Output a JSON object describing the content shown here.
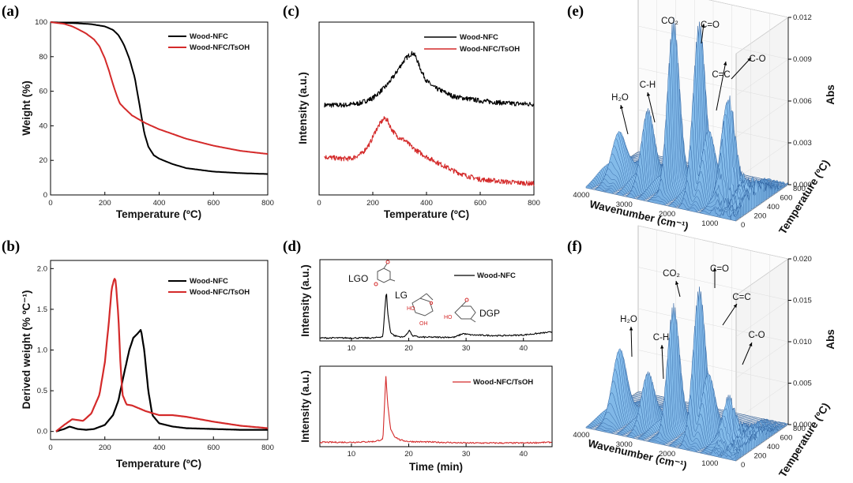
{
  "colors": {
    "black": "#000000",
    "red": "#d42a2a",
    "surface": "#3a6fb3",
    "surface_light": "#8fc1ee"
  },
  "panels": {
    "a": {
      "label": "(a)",
      "xlabel": "Temperature (ºC)",
      "ylabel": "Weight (%)"
    },
    "b": {
      "label": "(b)",
      "xlabel": "Temperature (ºC)",
      "ylabel": "Derived weight (% ºC⁻¹)"
    },
    "c": {
      "label": "(c)",
      "xlabel": "Temperature (ºC)",
      "ylabel": "Intensity (a.u.)"
    },
    "d": {
      "label": "(d)",
      "xlabel": "Time (min)",
      "ylabel_top": "Intensity (a.u.)",
      "ylabel_bottom": "Intensity (a.u.)"
    },
    "e": {
      "label": "(e)",
      "xlabel": "Wavenumber (cm⁻¹)",
      "ylabel": "Temperature (ºC)",
      "zlabel": "Abs"
    },
    "f": {
      "label": "(f)",
      "xlabel": "Wavenumber (cm⁻¹)",
      "ylabel": "Temperature (ºC)",
      "zlabel": "Abs"
    }
  },
  "chart_data": [
    {
      "id": "a",
      "type": "line",
      "xlabel": "Temperature (ºC)",
      "ylabel": "Weight (%)",
      "xlim": [
        0,
        800
      ],
      "ylim": [
        0,
        100
      ],
      "xticks": [
        0,
        200,
        400,
        600,
        800
      ],
      "yticks": [
        0,
        20,
        40,
        60,
        80,
        100
      ],
      "legend": [
        "Wood-NFC",
        "Wood-NFC/TsOH"
      ],
      "series": [
        {
          "name": "Wood-NFC",
          "color": "#000000",
          "x": [
            0,
            50,
            100,
            150,
            200,
            230,
            250,
            270,
            290,
            310,
            330,
            345,
            360,
            380,
            400,
            450,
            500,
            600,
            700,
            800
          ],
          "y": [
            100,
            99.6,
            99.3,
            98.8,
            97.5,
            95.5,
            92.5,
            87,
            79,
            68,
            50,
            36,
            28,
            23,
            21,
            17.8,
            15.5,
            13.5,
            12.6,
            12.1
          ]
        },
        {
          "name": "Wood-NFC/TsOH",
          "color": "#d42a2a",
          "x": [
            0,
            50,
            80,
            100,
            130,
            160,
            180,
            200,
            215,
            230,
            245,
            255,
            270,
            300,
            350,
            400,
            500,
            600,
            700,
            800
          ],
          "y": [
            100,
            99,
            97.5,
            96,
            93.5,
            90,
            86,
            79,
            72,
            64,
            57,
            53,
            50.5,
            46,
            41.5,
            38,
            32.5,
            28.5,
            25.5,
            23.7
          ]
        }
      ]
    },
    {
      "id": "b",
      "type": "line",
      "xlabel": "Temperature (ºC)",
      "ylabel": "Derived weight (% ºC⁻¹)",
      "xlim": [
        0,
        800
      ],
      "ylim": [
        -0.1,
        2.1
      ],
      "xticks": [
        0,
        200,
        400,
        600,
        800
      ],
      "yticks": [
        0.0,
        0.5,
        1.0,
        1.5,
        2.0
      ],
      "legend": [
        "Wood-NFC",
        "Wood-NFC/TsOH"
      ],
      "series": [
        {
          "name": "Wood-NFC",
          "color": "#000000",
          "x": [
            20,
            50,
            70,
            100,
            130,
            160,
            200,
            230,
            250,
            270,
            290,
            305,
            320,
            333,
            345,
            360,
            375,
            400,
            450,
            500,
            600,
            700,
            800
          ],
          "y": [
            0.0,
            0.03,
            0.06,
            0.03,
            0.02,
            0.03,
            0.08,
            0.2,
            0.38,
            0.7,
            1.0,
            1.15,
            1.2,
            1.25,
            1.0,
            0.5,
            0.2,
            0.1,
            0.06,
            0.04,
            0.03,
            0.02,
            0.02
          ]
        },
        {
          "name": "Wood-NFC/TsOH",
          "color": "#d42a2a",
          "x": [
            20,
            50,
            80,
            100,
            120,
            150,
            180,
            200,
            215,
            225,
            235,
            240,
            250,
            258,
            265,
            280,
            300,
            350,
            400,
            450,
            500,
            600,
            700,
            800
          ],
          "y": [
            0.0,
            0.08,
            0.15,
            0.14,
            0.13,
            0.22,
            0.45,
            0.85,
            1.35,
            1.75,
            1.88,
            1.85,
            1.4,
            0.8,
            0.45,
            0.33,
            0.32,
            0.25,
            0.2,
            0.2,
            0.18,
            0.12,
            0.07,
            0.04
          ]
        }
      ]
    },
    {
      "id": "c",
      "type": "line",
      "xlabel": "Temperature (ºC)",
      "ylabel": "Intensity (a.u.)",
      "xlim": [
        0,
        800
      ],
      "ylim": [
        0,
        10
      ],
      "xticks": [
        0,
        200,
        400,
        600,
        800
      ],
      "legend": [
        "Wood-NFC",
        "Wood-NFC/TsOH"
      ],
      "series": [
        {
          "name": "Wood-NFC",
          "color": "#000000",
          "x": [
            20,
            100,
            150,
            200,
            250,
            280,
            300,
            320,
            340,
            350,
            360,
            380,
            400,
            430,
            460,
            500,
            600,
            700,
            800
          ],
          "y": [
            5.2,
            5.2,
            5.3,
            5.6,
            6.3,
            6.9,
            7.4,
            7.85,
            8.15,
            8.2,
            8.0,
            7.2,
            6.6,
            6.2,
            6.0,
            5.7,
            5.45,
            5.3,
            5.25
          ]
        },
        {
          "name": "Wood-NFC/TsOH",
          "color": "#d42a2a",
          "x": [
            20,
            80,
            120,
            160,
            190,
            210,
            230,
            245,
            255,
            270,
            290,
            320,
            350,
            400,
            450,
            500,
            550,
            600,
            700,
            800
          ],
          "y": [
            2.2,
            2.1,
            2.1,
            2.4,
            3.0,
            3.7,
            4.2,
            4.45,
            4.3,
            3.8,
            3.4,
            3.15,
            2.7,
            2.2,
            1.8,
            1.4,
            1.1,
            0.9,
            0.75,
            0.65
          ]
        }
      ]
    },
    {
      "id": "d",
      "type": "line",
      "xlabel": "Time (min)",
      "xlim": [
        4.5,
        45
      ],
      "xticks": [
        10,
        20,
        30,
        40
      ],
      "subplots": [
        {
          "name": "Wood-NFC",
          "color": "#000000",
          "ylabel": "Intensity (a.u.)",
          "annotations": [
            "LGO",
            "LG",
            "DGP"
          ],
          "x": [
            4.5,
            10,
            14,
            15.5,
            15.9,
            16.1,
            16.3,
            16.8,
            17.5,
            19,
            19.7,
            20.1,
            20.6,
            22,
            28,
            29.5,
            30,
            31,
            36,
            40,
            45
          ],
          "y": [
            0.04,
            0.04,
            0.04,
            0.06,
            0.5,
            0.68,
            0.4,
            0.12,
            0.07,
            0.05,
            0.09,
            0.15,
            0.07,
            0.05,
            0.05,
            0.1,
            0.09,
            0.08,
            0.07,
            0.08,
            0.12
          ]
        },
        {
          "name": "Wood-NFC/TsOH",
          "color": "#d42a2a",
          "ylabel": "Intensity (a.u.)",
          "x": [
            4.5,
            10,
            14,
            15.5,
            15.8,
            16.0,
            16.3,
            16.8,
            17.5,
            18.5,
            20,
            25,
            30,
            35,
            40,
            45
          ],
          "y": [
            0.06,
            0.06,
            0.07,
            0.1,
            0.6,
            0.97,
            0.6,
            0.25,
            0.14,
            0.09,
            0.07,
            0.06,
            0.05,
            0.05,
            0.05,
            0.06
          ]
        }
      ]
    },
    {
      "id": "e",
      "type": "surface3d",
      "xlabel": "Wavenumber (cm⁻¹)",
      "ylabel": "Temperature (ºC)",
      "zlabel": "Abs",
      "xlim": [
        4000,
        500
      ],
      "ylim": [
        0,
        800
      ],
      "zlim": [
        0,
        0.012
      ],
      "xticks": [
        4000,
        3000,
        2000,
        1000
      ],
      "yticks": [
        0,
        200,
        400,
        600,
        800
      ],
      "zticks": [
        "0.000",
        "0.003",
        "0.006",
        "0.009",
        "0.012"
      ],
      "annotations": [
        "H₂O",
        "C-H",
        "CO₂",
        "C=O",
        "C=C",
        "C-O"
      ],
      "peaks": [
        {
          "label": "H₂O",
          "wavenumber": 3600,
          "abs": 0.0033
        },
        {
          "label": "C-H",
          "wavenumber": 2950,
          "abs": 0.0048
        },
        {
          "label": "CO₂",
          "wavenumber": 2350,
          "abs": 0.0125
        },
        {
          "label": "C=O",
          "wavenumber": 1750,
          "abs": 0.0118
        },
        {
          "label": "C=C",
          "wavenumber": 1550,
          "abs": 0.0045
        },
        {
          "label": "C-O",
          "wavenumber": 1100,
          "abs": 0.0072
        }
      ]
    },
    {
      "id": "f",
      "type": "surface3d",
      "xlabel": "Wavenumber (cm⁻¹)",
      "ylabel": "Temperature (ºC)",
      "zlabel": "Abs",
      "xlim": [
        4000,
        500
      ],
      "ylim": [
        0,
        800
      ],
      "zlim": [
        0,
        0.02
      ],
      "xticks": [
        4000,
        3000,
        2000,
        1000
      ],
      "yticks": [
        0,
        200,
        400,
        600,
        800
      ],
      "zticks": [
        "0.000",
        "0.005",
        "0.010",
        "0.015",
        "0.020"
      ],
      "annotations": [
        "H₂O",
        "C-H",
        "CO₂",
        "C=O",
        "C=C",
        "C-O"
      ],
      "peaks": [
        {
          "label": "H₂O",
          "wavenumber": 3600,
          "abs": 0.0085
        },
        {
          "label": "C-H",
          "wavenumber": 2950,
          "abs": 0.0058
        },
        {
          "label": "CO₂",
          "wavenumber": 2350,
          "abs": 0.0155
        },
        {
          "label": "C=O",
          "wavenumber": 1750,
          "abs": 0.0172
        },
        {
          "label": "C=C",
          "wavenumber": 1550,
          "abs": 0.0075
        },
        {
          "label": "C-O",
          "wavenumber": 1100,
          "abs": 0.0048
        }
      ]
    }
  ]
}
